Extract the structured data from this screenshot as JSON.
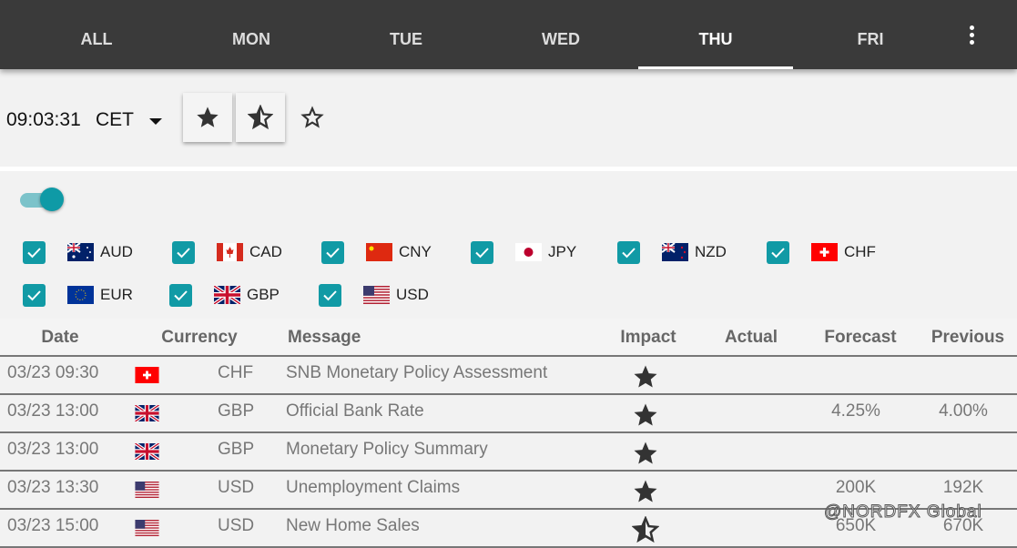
{
  "tabs": [
    {
      "label": "ALL"
    },
    {
      "label": "MON"
    },
    {
      "label": "TUE"
    },
    {
      "label": "WED"
    },
    {
      "label": "THU",
      "active": true
    },
    {
      "label": "FRI"
    }
  ],
  "toolbar": {
    "time": "09:03:31",
    "timezone": "CET",
    "impact_filters": [
      "star-full-icon",
      "star-half-icon",
      "star-outline-icon"
    ]
  },
  "toggle": {
    "on": true
  },
  "colors": {
    "accent": "#119aa5",
    "header": "#3a3a3a",
    "star": "#333333"
  },
  "currencies": [
    {
      "code": "AUD",
      "checked": true
    },
    {
      "code": "CAD",
      "checked": true
    },
    {
      "code": "CNY",
      "checked": true
    },
    {
      "code": "JPY",
      "checked": true
    },
    {
      "code": "NZD",
      "checked": true
    },
    {
      "code": "CHF",
      "checked": true
    },
    {
      "code": "EUR",
      "checked": true
    },
    {
      "code": "GBP",
      "checked": true
    },
    {
      "code": "USD",
      "checked": true
    }
  ],
  "table": {
    "headers": {
      "date": "Date",
      "currency": "Currency",
      "message": "Message",
      "impact": "Impact",
      "actual": "Actual",
      "forecast": "Forecast",
      "previous": "Previous"
    },
    "rows": [
      {
        "date": "03/23 09:30",
        "currency": "CHF",
        "message": "SNB Monetary Policy Assessment",
        "impact": "high",
        "actual": "",
        "forecast": "",
        "previous": ""
      },
      {
        "date": "03/23 13:00",
        "currency": "GBP",
        "message": "Official Bank Rate",
        "impact": "high",
        "actual": "",
        "forecast": "4.25%",
        "previous": "4.00%"
      },
      {
        "date": "03/23 13:00",
        "currency": "GBP",
        "message": "Monetary Policy Summary",
        "impact": "high",
        "actual": "",
        "forecast": "",
        "previous": ""
      },
      {
        "date": "03/23 13:30",
        "currency": "USD",
        "message": "Unemployment Claims",
        "impact": "high",
        "actual": "",
        "forecast": "200K",
        "previous": "192K"
      },
      {
        "date": "03/23 15:00",
        "currency": "USD",
        "message": "New Home Sales",
        "impact": "medium",
        "actual": "",
        "forecast": "650K",
        "previous": "670K"
      }
    ]
  },
  "watermark": "@NORDFX Global"
}
